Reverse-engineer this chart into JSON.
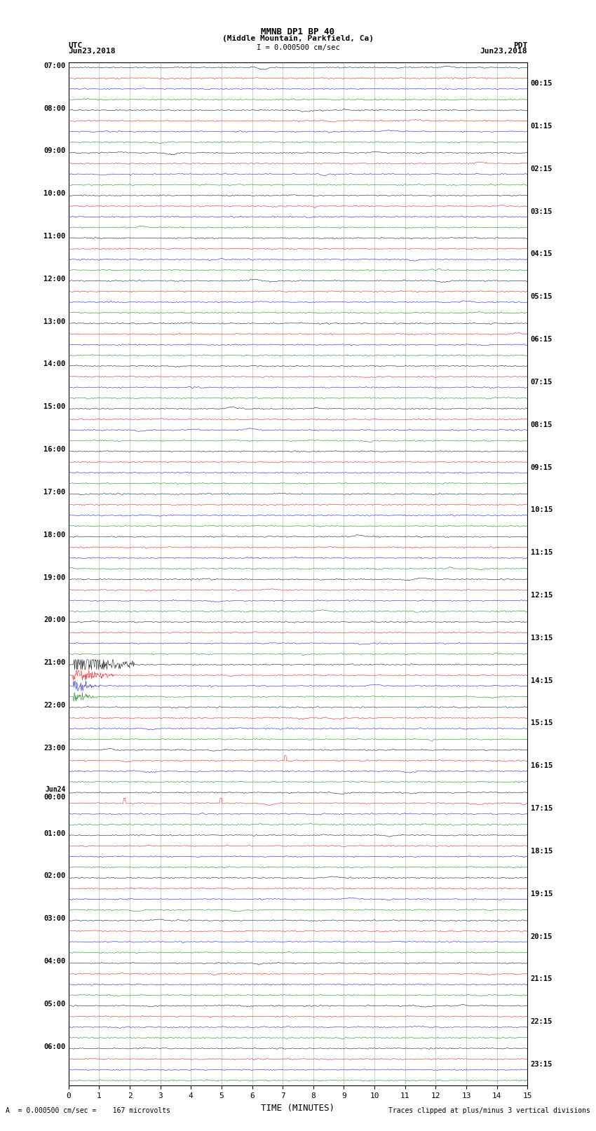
{
  "title_line1": "MMNB DP1 BP 40",
  "title_line2": "(Middle Mountain, Parkfield, Ca)",
  "scale_label": "I = 0.000500 cm/sec",
  "left_label": "UTC",
  "left_date": "Jun23,2018",
  "right_label": "PDT",
  "right_date": "Jun23,2018",
  "bottom_label": "TIME (MINUTES)",
  "footer_left": "A  = 0.000500 cm/sec =    167 microvolts",
  "footer_right": "Traces clipped at plus/minus 3 vertical divisions",
  "trace_colors": [
    "black",
    "red",
    "blue",
    "green"
  ],
  "utc_times": [
    "07:00",
    "08:00",
    "09:00",
    "10:00",
    "11:00",
    "12:00",
    "13:00",
    "14:00",
    "15:00",
    "16:00",
    "17:00",
    "18:00",
    "19:00",
    "20:00",
    "21:00",
    "22:00",
    "23:00",
    "Jun24",
    "00:00",
    "01:00",
    "02:00",
    "03:00",
    "04:00",
    "05:00",
    "06:00"
  ],
  "pdt_times": [
    "00:15",
    "01:15",
    "02:15",
    "03:15",
    "04:15",
    "05:15",
    "06:15",
    "07:15",
    "08:15",
    "09:15",
    "10:15",
    "11:15",
    "12:15",
    "13:15",
    "14:15",
    "15:15",
    "16:15",
    "17:15",
    "18:15",
    "19:15",
    "20:15",
    "21:15",
    "22:15",
    "23:15"
  ],
  "n_hours": 24,
  "traces_per_hour": 4,
  "minutes": 15,
  "noise_seed": 42,
  "bg_color": "white",
  "figure_width": 8.5,
  "figure_height": 16.13,
  "dpi": 100,
  "x_ticks": [
    0,
    1,
    2,
    3,
    4,
    5,
    6,
    7,
    8,
    9,
    10,
    11,
    12,
    13,
    14,
    15
  ]
}
